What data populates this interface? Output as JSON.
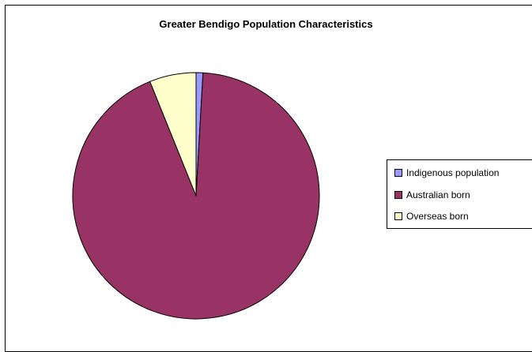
{
  "chart_data": {
    "type": "pie",
    "title": "Greater Bendigo Population Characteristics",
    "slices": [
      {
        "label": "Indigenous population",
        "value": 0.9,
        "color": "#9999ff"
      },
      {
        "label": "Australian born",
        "value": 93.0,
        "color": "#993366"
      },
      {
        "label": "Overseas born",
        "value": 6.1,
        "color": "#ffffcc"
      }
    ],
    "legend_position": "right"
  }
}
